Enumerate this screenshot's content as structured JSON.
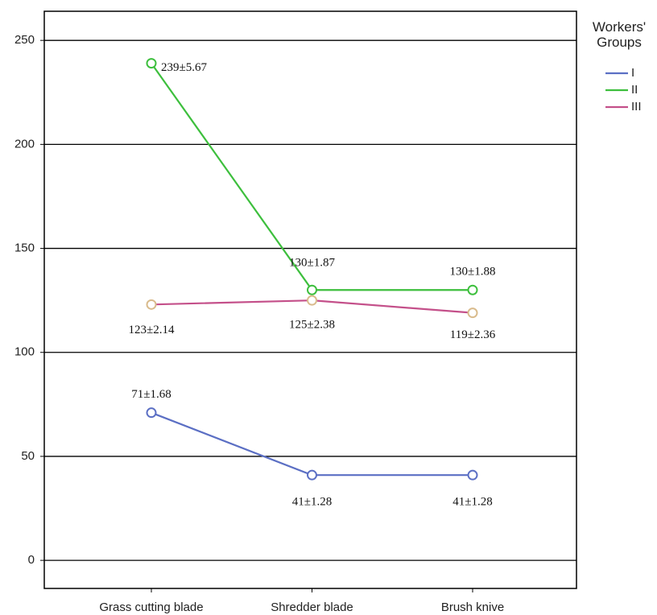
{
  "chart_data": {
    "type": "line",
    "categories": [
      "Grass cutting blade",
      "Shredder blade",
      "Brush knive"
    ],
    "series": [
      {
        "name": "I",
        "color": "#5b6fc4",
        "marker_color": "#5b6fc4",
        "values": [
          71,
          41,
          41
        ],
        "value_labels": [
          "71±1.68",
          "41±1.28",
          "41±1.28"
        ]
      },
      {
        "name": "II",
        "color": "#3dbf3d",
        "marker_color": "#3dbf3d",
        "values": [
          239,
          130,
          130
        ],
        "value_labels": [
          "239±5.67",
          "130±1.87",
          "130±1.88"
        ]
      },
      {
        "name": "III",
        "color": "#c4508a",
        "marker_color": "#d9bb8c",
        "values": [
          123,
          125,
          119
        ],
        "value_labels": [
          "123±2.14",
          "125±2.38",
          "119±2.36"
        ]
      }
    ],
    "ylim": [
      -13.5,
      264
    ],
    "yticks": [
      0,
      50,
      100,
      150,
      200,
      250
    ],
    "grid": true,
    "legend_title": "Workers' Groups",
    "legend_position": "right"
  }
}
